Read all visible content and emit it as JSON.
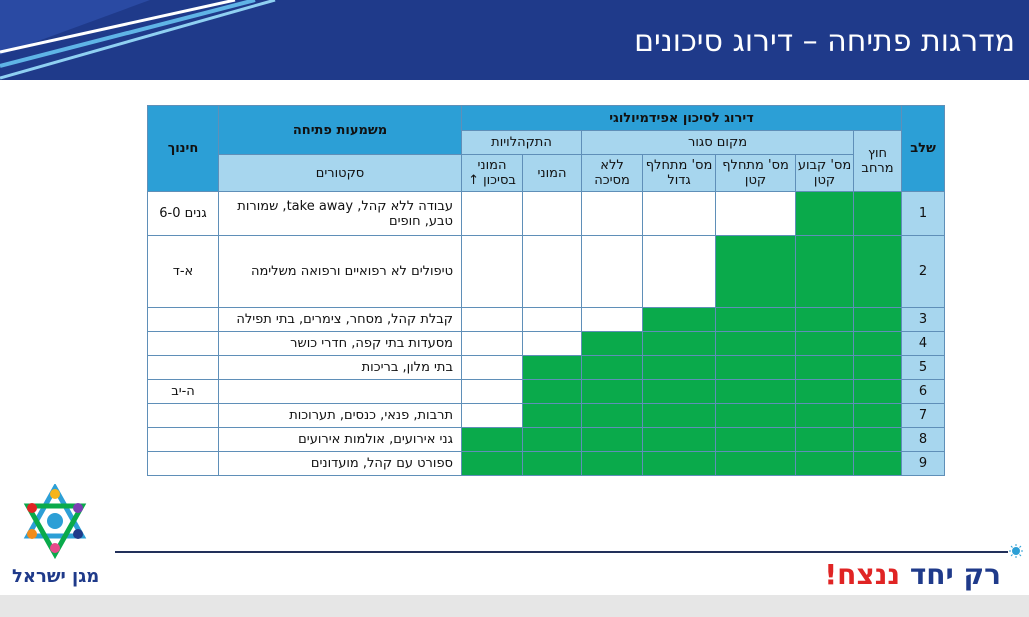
{
  "header": {
    "title": "מדרגות פתיחה – דירוג סיכונים"
  },
  "table": {
    "title_risk": "דירוג לסיכון אפידמיולוגי",
    "col_stage": "שלב",
    "col_meaning": "משמעות פתיחה",
    "col_education": "חינוך",
    "group_gatherings": "התקהלויות",
    "group_closed": "מקום סגור",
    "col_outdoor": "חוץ מרחב",
    "col_sectors": "סקטורים",
    "col_mass_high": "המוני בסיכון ↑",
    "col_mass": "המוני",
    "col_no_mask": "ללא מסיכה",
    "col_var_large": "מס' מתחלף גדול",
    "col_var_small": "מס' מתחלף קטן",
    "col_fixed_small": "מס' קבוע קטן",
    "rows": [
      {
        "stage": "1",
        "sector": "עבודה ללא קהל, take away, שמורות טבע, חופים",
        "education": "גנים 6-0"
      },
      {
        "stage": "2",
        "sector": "טיפולים לא רפואיים ורפואה משלימה",
        "education": "א-ד"
      },
      {
        "stage": "3",
        "sector": "קבלת קהל, מסחר, צימרים, בתי תפילה",
        "education": ""
      },
      {
        "stage": "4",
        "sector": "מסעדות בתי קפה, חדרי כושר",
        "education": ""
      },
      {
        "stage": "5",
        "sector": "בתי מלון, בריכות",
        "education": ""
      },
      {
        "stage": "6",
        "sector": "",
        "education": "ה-יב"
      },
      {
        "stage": "7",
        "sector": "תרבות, פנאי, כנסים, תערוכות",
        "education": ""
      },
      {
        "stage": "8",
        "sector": "גני אירועים, אולמות אירועים",
        "education": ""
      },
      {
        "stage": "9",
        "sector": "ספורט עם קהל, מועדונים",
        "education": ""
      }
    ]
  },
  "footer": {
    "slogan_main": "רק יחד ",
    "slogan_accent": "ננצח!",
    "logo_text": "מגן ישראל"
  },
  "colors": {
    "header_blue": "#1f3a8a",
    "table_header": "#2c9fd6",
    "table_light": "#a7d6ee",
    "open_green": "#0aaa4b"
  }
}
